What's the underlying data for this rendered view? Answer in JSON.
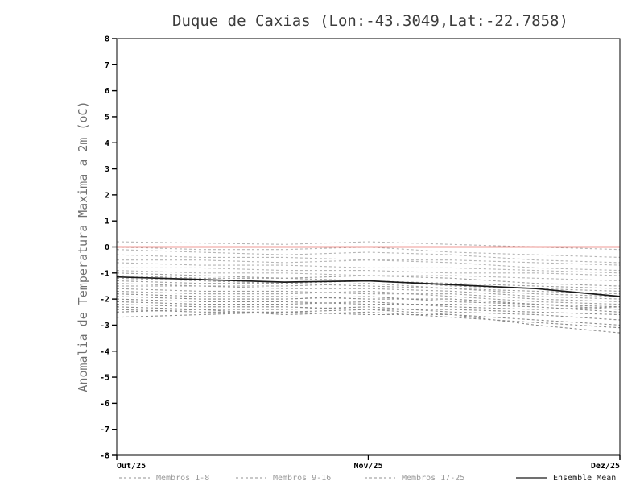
{
  "title": "Duque de Caxias (Lon:-43.3049,Lat:-22.7858)",
  "ylabel": "Anomalia de Temperatura Maxima a 2m (oC)",
  "colors": {
    "background": "#ffffff",
    "frame": "#000000",
    "title": "#3c3c3c",
    "ylabel": "#707070",
    "tick_text": "#000000",
    "member_group1": "#b5b5b5",
    "member_group2": "#9e9e9e",
    "member_group3": "#8a8a8a",
    "mean": "#1a1a1a",
    "zero_line": "#e0342b",
    "legend_gray_text": "#9a9a9a",
    "legend_dark_text": "#1a1a1a"
  },
  "legend": [
    {
      "label": "Membros 1-8",
      "style": "dashed",
      "color": "#a8a8a8",
      "text_color": "#9a9a9a"
    },
    {
      "label": "Membros 9-16",
      "style": "dashed",
      "color": "#a8a8a8",
      "text_color": "#9a9a9a"
    },
    {
      "label": "Membros 17-25",
      "style": "dashed",
      "color": "#a8a8a8",
      "text_color": "#9a9a9a"
    },
    {
      "label": "Ensemble Mean",
      "style": "solid",
      "color": "#1a1a1a",
      "text_color": "#1a1a1a"
    }
  ],
  "chart_data": {
    "type": "line",
    "title": "Duque de Caxias (Lon:-43.3049,Lat:-22.7858)",
    "xlabel": "",
    "ylabel": "Anomalia de Temperatura Maxima a 2m (oC)",
    "ylim": [
      -8,
      8
    ],
    "y_tick_step": 1,
    "x_tick_labels": [
      "Out/25",
      "Nov/25",
      "Dez/25"
    ],
    "x_tick_pos": [
      0,
      0.5,
      1
    ],
    "grid": false,
    "legend_position": "bottom",
    "reference_line": {
      "name": "zero-line",
      "value": 0
    },
    "ensemble_mean": [
      -1.15,
      -1.25,
      -1.35,
      -1.3,
      -1.45,
      -1.6,
      -1.9
    ],
    "members": [
      {
        "name": "member-1",
        "values": [
          0.2,
          0.15,
          0.1,
          0.2,
          0.1,
          0.0,
          -0.1
        ]
      },
      {
        "name": "member-2",
        "values": [
          0.0,
          -0.1,
          -0.1,
          0.0,
          -0.2,
          -0.3,
          -0.4
        ]
      },
      {
        "name": "member-3",
        "values": [
          -0.1,
          -0.2,
          -0.3,
          -0.2,
          -0.3,
          -0.5,
          -0.6
        ]
      },
      {
        "name": "member-4",
        "values": [
          -0.3,
          -0.4,
          -0.4,
          -0.5,
          -0.5,
          -0.6,
          -0.7
        ]
      },
      {
        "name": "member-5",
        "values": [
          -0.5,
          -0.5,
          -0.6,
          -0.5,
          -0.6,
          -0.8,
          -0.9
        ]
      },
      {
        "name": "member-6",
        "values": [
          -0.6,
          -0.7,
          -0.7,
          -0.8,
          -0.8,
          -0.9,
          -1.0
        ]
      },
      {
        "name": "member-7",
        "values": [
          -0.8,
          -0.8,
          -0.9,
          -0.9,
          -1.0,
          -1.0,
          -1.1
        ]
      },
      {
        "name": "member-8",
        "values": [
          -0.9,
          -1.0,
          -1.0,
          -1.1,
          -1.1,
          -1.2,
          -1.3
        ]
      },
      {
        "name": "member-9",
        "values": [
          -1.0,
          -1.1,
          -1.2,
          -1.1,
          -1.2,
          -1.4,
          -1.5
        ]
      },
      {
        "name": "member-10",
        "values": [
          -1.1,
          -1.2,
          -1.2,
          -1.3,
          -1.4,
          -1.5,
          -1.6
        ]
      },
      {
        "name": "member-11",
        "values": [
          -1.2,
          -1.3,
          -1.4,
          -1.3,
          -1.5,
          -1.6,
          -1.7
        ]
      },
      {
        "name": "member-12",
        "values": [
          -1.3,
          -1.4,
          -1.4,
          -1.5,
          -1.6,
          -1.7,
          -1.8
        ]
      },
      {
        "name": "member-13",
        "values": [
          -1.4,
          -1.5,
          -1.5,
          -1.4,
          -1.6,
          -1.8,
          -1.9
        ]
      },
      {
        "name": "member-14",
        "values": [
          -1.5,
          -1.5,
          -1.6,
          -1.6,
          -1.7,
          -1.9,
          -2.0
        ]
      },
      {
        "name": "member-15",
        "values": [
          -1.6,
          -1.7,
          -1.7,
          -1.8,
          -1.8,
          -2.0,
          -2.1
        ]
      },
      {
        "name": "member-16",
        "values": [
          -1.7,
          -1.8,
          -1.8,
          -1.7,
          -1.9,
          -2.1,
          -2.2
        ]
      },
      {
        "name": "member-17",
        "values": [
          -1.8,
          -1.9,
          -1.9,
          -2.0,
          -2.0,
          -2.2,
          -2.3
        ]
      },
      {
        "name": "member-18",
        "values": [
          -1.9,
          -2.0,
          -2.0,
          -1.9,
          -2.1,
          -2.2,
          -2.4
        ]
      },
      {
        "name": "member-19",
        "values": [
          -2.0,
          -2.1,
          -2.1,
          -2.2,
          -2.2,
          -2.3,
          -2.5
        ]
      },
      {
        "name": "member-20",
        "values": [
          -2.1,
          -2.2,
          -2.2,
          -2.1,
          -2.3,
          -2.4,
          -2.3
        ]
      },
      {
        "name": "member-21",
        "values": [
          -2.2,
          -2.3,
          -2.3,
          -2.4,
          -2.4,
          -2.5,
          -2.6
        ]
      },
      {
        "name": "member-22",
        "values": [
          -2.3,
          -2.4,
          -2.4,
          -2.3,
          -2.5,
          -2.6,
          -2.8
        ]
      },
      {
        "name": "member-23",
        "values": [
          -2.4,
          -2.5,
          -2.5,
          -2.6,
          -2.6,
          -2.8,
          -3.0
        ]
      },
      {
        "name": "member-24",
        "values": [
          -2.5,
          -2.4,
          -2.6,
          -2.5,
          -2.7,
          -2.9,
          -3.1
        ]
      },
      {
        "name": "member-25",
        "values": [
          -2.7,
          -2.6,
          -2.5,
          -2.4,
          -2.6,
          -3.0,
          -3.3
        ]
      }
    ]
  }
}
